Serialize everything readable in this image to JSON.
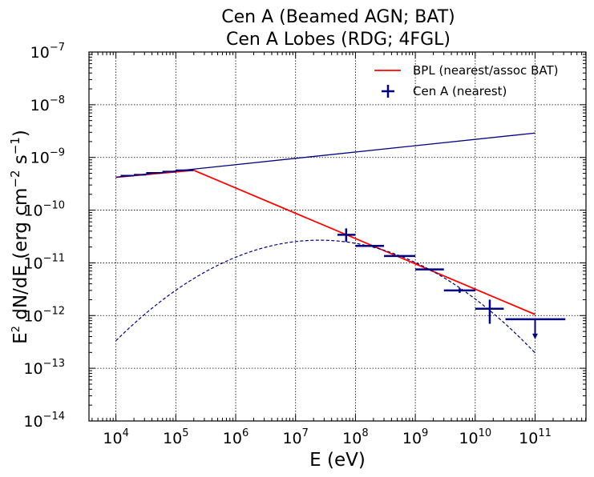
{
  "chart_data": {
    "type": "line",
    "title_lines": [
      "Cen A (Beamed AGN; BAT)",
      "Cen A Lobes (RDG; 4FGL)"
    ],
    "xlabel": "E (eV)",
    "ylabel": {
      "base": "E",
      "sup1": "2",
      "mid": " dN/dE (erg cm",
      "sup2": "−2",
      "mid2": " s",
      "sup3": "−1",
      "end": ")"
    },
    "x_scale": "log",
    "y_scale": "log",
    "xlim_log10": [
      3.55,
      11.85
    ],
    "ylim_log10": [
      -14,
      -7
    ],
    "x_ticks": [
      {
        "exp": 4,
        "base": "10",
        "sup": "4"
      },
      {
        "exp": 5,
        "base": "10",
        "sup": "5"
      },
      {
        "exp": 6,
        "base": "10",
        "sup": "6"
      },
      {
        "exp": 7,
        "base": "10",
        "sup": "7"
      },
      {
        "exp": 8,
        "base": "10",
        "sup": "8"
      },
      {
        "exp": 9,
        "base": "10",
        "sup": "9"
      },
      {
        "exp": 10,
        "base": "10",
        "sup": "10"
      },
      {
        "exp": 11,
        "base": "10",
        "sup": "11"
      }
    ],
    "y_ticks": [
      {
        "exp": -14,
        "base": "10",
        "sup": "−14"
      },
      {
        "exp": -13,
        "base": "10",
        "sup": "−13"
      },
      {
        "exp": -12,
        "base": "10",
        "sup": "−12"
      },
      {
        "exp": -11,
        "base": "10",
        "sup": "−11"
      },
      {
        "exp": -10,
        "base": "10",
        "sup": "−10"
      },
      {
        "exp": -9,
        "base": "10",
        "sup": "−9"
      },
      {
        "exp": -8,
        "base": "10",
        "sup": "−8"
      },
      {
        "exp": -7,
        "base": "10",
        "sup": "−7"
      }
    ],
    "grid": true,
    "legend_placement": "top-right",
    "series": [
      {
        "name": "BPL (nearest/assoc BAT)",
        "kind": "line",
        "color": "#ff0000",
        "x": [
          10000.0,
          200000.0,
          100000000000.0
        ],
        "y": [
          4.2e-10,
          5.7e-10,
          1.05e-12
        ]
      },
      {
        "name": "",
        "kind": "line",
        "color": "#000080",
        "x": [
          10000.0,
          100000000000.0
        ],
        "y": [
          4.2e-10,
          2.9e-09
        ]
      },
      {
        "name": "",
        "kind": "dashed-curve",
        "color": "#000080",
        "log_peak_x": 7.4,
        "log_peak_y": -10.57,
        "curvature": 0.165,
        "x_range": [
          10000.0,
          100000000000.0
        ]
      },
      {
        "name": "",
        "kind": "bat-errorbars",
        "color": "#000080",
        "points": [
          {
            "x": 15000.0,
            "xlo": 12000.0,
            "xhi": 20000.0,
            "y": 4.5e-10
          },
          {
            "x": 25000.0,
            "xlo": 20000.0,
            "xhi": 32000.0,
            "y": 4.7e-10
          },
          {
            "x": 45000.0,
            "xlo": 32000.0,
            "xhi": 60000.0,
            "y": 5.1e-10
          },
          {
            "x": 80000.0,
            "xlo": 60000.0,
            "xhi": 100000.0,
            "y": 5.4e-10
          },
          {
            "x": 130000.0,
            "xlo": 100000.0,
            "xhi": 195000.0,
            "y": 5.7e-10
          }
        ]
      },
      {
        "name": "Cen A (nearest)",
        "kind": "errorbars",
        "color": "#000080",
        "points": [
          {
            "x": 70000000.0,
            "xlo": 50000000.0,
            "xhi": 100000000.0,
            "y": 3.4e-11,
            "ylo": 2.5e-11,
            "yhi": 4.5e-11,
            "upper_limit": false
          },
          {
            "x": 175000000.0,
            "xlo": 100000000.0,
            "xhi": 300000000.0,
            "y": 2.1e-11,
            "ylo": 2.1e-11,
            "yhi": 2.1e-11,
            "upper_limit": false
          },
          {
            "x": 550000000.0,
            "xlo": 300000000.0,
            "xhi": 1000000000.0,
            "y": 1.35e-11,
            "ylo": 1.35e-11,
            "yhi": 1.35e-11,
            "upper_limit": false
          },
          {
            "x": 1750000000.0,
            "xlo": 1000000000.0,
            "xhi": 3000000000.0,
            "y": 7.5e-12,
            "ylo": 7.5e-12,
            "yhi": 7.5e-12,
            "upper_limit": false
          },
          {
            "x": 5500000000.0,
            "xlo": 3000000000.0,
            "xhi": 10000000000.0,
            "y": 3e-12,
            "ylo": 2.7e-12,
            "yhi": 3.3e-12,
            "upper_limit": false
          },
          {
            "x": 17500000000.0,
            "xlo": 10000000000.0,
            "xhi": 30000000000.0,
            "y": 1.35e-12,
            "ylo": 7e-13,
            "yhi": 2e-12,
            "upper_limit": false
          },
          {
            "x": 100000000000.0,
            "xlo": 32000000000.0,
            "xhi": 320000000000.0,
            "y": 8.5e-13,
            "ylo": 8.5e-13,
            "yhi": 8.5e-13,
            "upper_limit": true
          }
        ]
      }
    ],
    "legend": [
      {
        "label": "BPL (nearest/assoc BAT)",
        "marker": "line",
        "color": "#ff0000"
      },
      {
        "label": "Cen A (nearest)",
        "marker": "cross",
        "color": "#000080"
      }
    ]
  }
}
